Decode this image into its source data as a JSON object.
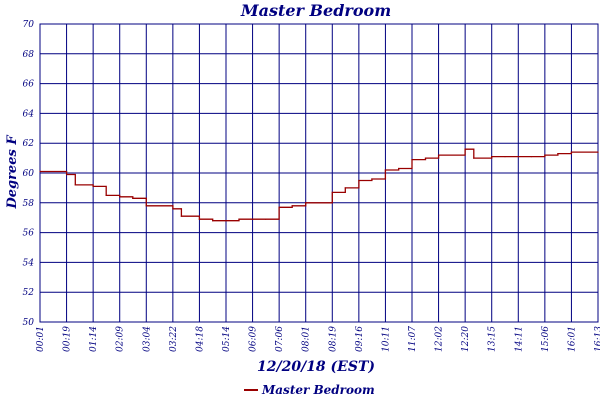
{
  "chart_data": {
    "type": "line",
    "title": "Master Bedroom",
    "xlabel": "12/20/18 (EST)",
    "ylabel": "Degrees F",
    "ylim": [
      50,
      70
    ],
    "yticks": [
      50,
      52,
      54,
      56,
      58,
      60,
      62,
      64,
      66,
      68,
      70
    ],
    "xticks": [
      "00:01",
      "00:19",
      "01:14",
      "02:09",
      "03:04",
      "03:22",
      "04:18",
      "05:14",
      "06:09",
      "07:06",
      "08:01",
      "08:19",
      "09:16",
      "10:11",
      "11:07",
      "12:02",
      "12:20",
      "13:15",
      "14:11",
      "15:06",
      "16:01",
      "16:13"
    ],
    "grid": true,
    "legend_position": "bottom-center",
    "colors": {
      "series": "#990000",
      "grid": "#000080",
      "text": "#000080"
    },
    "series": [
      {
        "name": "Master Bedroom",
        "points": [
          [
            "00:01",
            60.1
          ],
          [
            "00:19",
            59.9
          ],
          [
            "00:37",
            59.2
          ],
          [
            "01:14",
            59.1
          ],
          [
            "01:41",
            58.5
          ],
          [
            "02:09",
            58.4
          ],
          [
            "02:36",
            58.3
          ],
          [
            "03:04",
            57.8
          ],
          [
            "03:22",
            57.6
          ],
          [
            "03:40",
            57.1
          ],
          [
            "04:18",
            56.9
          ],
          [
            "04:46",
            56.8
          ],
          [
            "05:14",
            56.8
          ],
          [
            "05:41",
            56.9
          ],
          [
            "06:09",
            56.9
          ],
          [
            "06:37",
            56.9
          ],
          [
            "07:06",
            57.7
          ],
          [
            "07:33",
            57.8
          ],
          [
            "08:01",
            58.0
          ],
          [
            "08:19",
            58.7
          ],
          [
            "08:47",
            59.0
          ],
          [
            "09:16",
            59.5
          ],
          [
            "09:43",
            59.6
          ],
          [
            "10:11",
            60.2
          ],
          [
            "10:39",
            60.3
          ],
          [
            "11:07",
            60.9
          ],
          [
            "11:35",
            61.0
          ],
          [
            "12:02",
            61.2
          ],
          [
            "12:20",
            61.6
          ],
          [
            "12:38",
            61.0
          ],
          [
            "13:15",
            61.1
          ],
          [
            "13:43",
            61.1
          ],
          [
            "14:11",
            61.1
          ],
          [
            "14:38",
            61.1
          ],
          [
            "15:06",
            61.2
          ],
          [
            "15:33",
            61.3
          ],
          [
            "16:01",
            61.4
          ],
          [
            "16:13",
            61.4
          ]
        ]
      }
    ]
  }
}
